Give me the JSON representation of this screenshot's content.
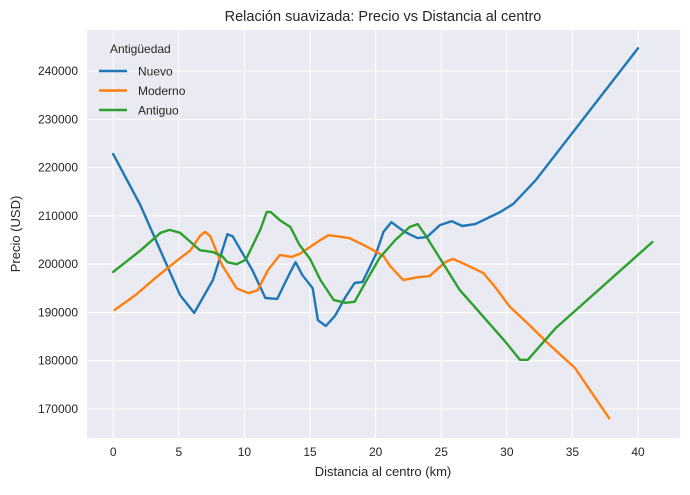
{
  "chart_data": {
    "type": "line",
    "title": "Relación suavizada: Precio vs Distancia al centro",
    "xlabel": "Distancia al centro (km)",
    "ylabel": "Precio (USD)",
    "xlim": [
      -2,
      43.2
    ],
    "ylim": [
      164000,
      248500
    ],
    "xticks": [
      0,
      5,
      10,
      15,
      20,
      25,
      30,
      35,
      40
    ],
    "yticks": [
      170000,
      180000,
      190000,
      200000,
      210000,
      220000,
      230000,
      240000
    ],
    "grid": true,
    "legend": {
      "title": "Antigüedad",
      "placement": "top-left"
    },
    "series": [
      {
        "name": "Nuevo",
        "color": "#1f77b4",
        "x": [
          0,
          2.06,
          5.1,
          6.17,
          7.6,
          8.7,
          9.1,
          10.6,
          11.6,
          12.5,
          13.5,
          13.9,
          14.4,
          15.2,
          15.6,
          16.2,
          16.9,
          17.7,
          18.4,
          19,
          20,
          20.6,
          21.2,
          22.2,
          23.2,
          23.9,
          24.9,
          25.8,
          26.6,
          27.6,
          29.5,
          30.5,
          32.2,
          40
        ],
        "y": [
          222800,
          212250,
          193600,
          189900,
          196700,
          206200,
          205800,
          198800,
          193000,
          192800,
          198400,
          200400,
          197800,
          195000,
          188400,
          187200,
          189300,
          193200,
          196100,
          196300,
          201900,
          206700,
          208700,
          206700,
          205400,
          205600,
          208100,
          208900,
          207900,
          208300,
          210800,
          212500,
          217400,
          244700
        ]
      },
      {
        "name": "Moderno",
        "color": "#ff7f0e",
        "x": [
          0.1,
          1.7,
          3.2,
          4.7,
          5.9,
          6.6,
          7.0,
          7.4,
          8.3,
          9.4,
          10.3,
          11,
          11.8,
          12.7,
          13.6,
          14.2,
          15.8,
          16.4,
          17,
          18,
          19.2,
          20.1,
          20.6,
          21.1,
          22.1,
          23.2,
          24.1,
          25.3,
          25.9,
          26.8,
          28.2,
          29.1,
          30.2,
          31.8,
          33.1,
          35.2,
          37.8
        ],
        "y": [
          190500,
          193600,
          197100,
          200400,
          202900,
          205800,
          206700,
          205800,
          199800,
          195000,
          194000,
          194600,
          198800,
          201900,
          201500,
          202100,
          205000,
          206000,
          205800,
          205400,
          203800,
          202500,
          201700,
          199600,
          196700,
          197300,
          197500,
          200400,
          201100,
          200000,
          198200,
          195300,
          191300,
          187200,
          183700,
          178500,
          168100
        ]
      },
      {
        "name": "Antiguo",
        "color": "#2ca02c",
        "x": [
          0,
          2.1,
          3.6,
          4.3,
          5.1,
          5.9,
          6.6,
          7.6,
          8.3,
          8.7,
          9.4,
          10.1,
          11.2,
          11.7,
          12,
          12.7,
          13.5,
          14.2,
          15,
          15.8,
          16.8,
          17.7,
          18.4,
          19.2,
          20.3,
          21.5,
          22.6,
          23.2,
          23.8,
          24.6,
          26.4,
          27.6,
          29.9,
          31,
          31.6,
          33.7,
          41.1
        ],
        "y": [
          198400,
          202900,
          206500,
          207100,
          206500,
          204600,
          202900,
          202500,
          201700,
          200400,
          200000,
          200900,
          207100,
          210800,
          210800,
          209100,
          207700,
          204000,
          201100,
          196700,
          192600,
          192000,
          192200,
          196100,
          201300,
          205000,
          207700,
          208300,
          206000,
          202500,
          194700,
          191000,
          183900,
          180200,
          180200,
          186700,
          204600
        ]
      }
    ]
  }
}
